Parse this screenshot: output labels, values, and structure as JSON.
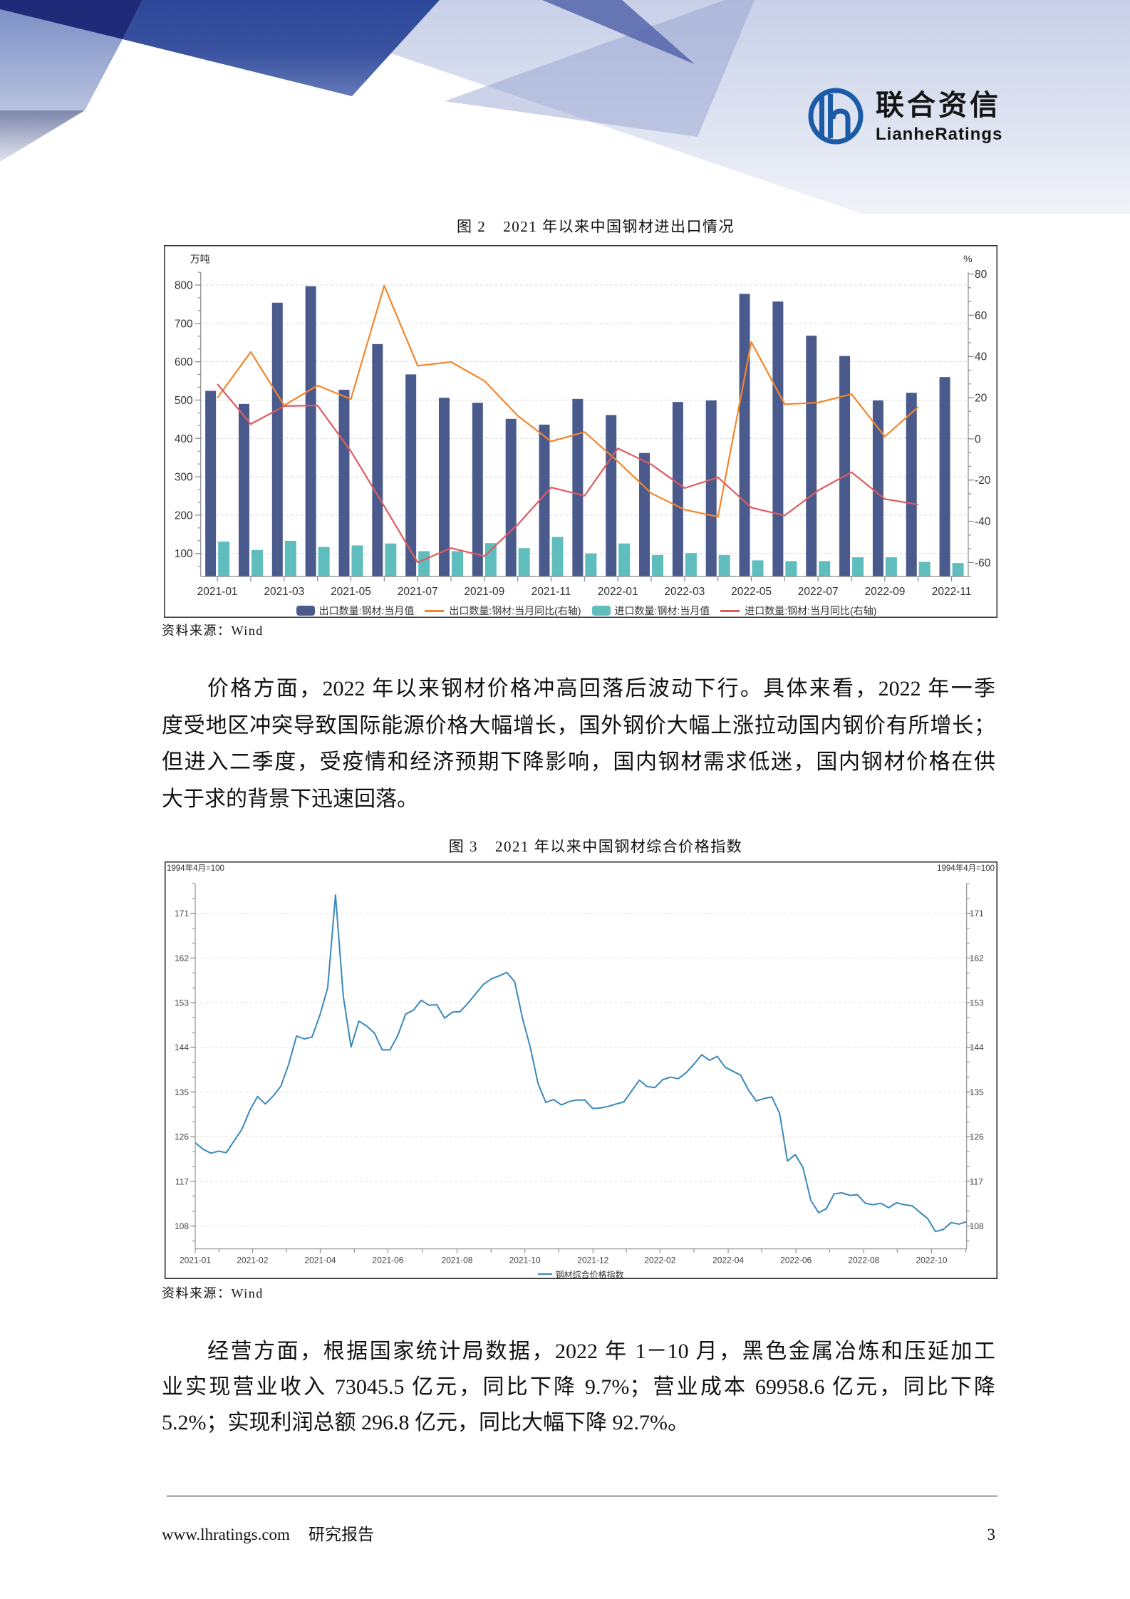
{
  "header": {
    "logo": {
      "name_cn": "联合资信",
      "name_en": "LianheRatings",
      "icon": "lh-logo-icon"
    }
  },
  "figure2": {
    "label": "图 2",
    "title": "2021 年以来中国钢材进出口情况",
    "source": "资料来源：Wind"
  },
  "paragraph1": {
    "lines": [
      "价格方面，2022 年以来钢材价格冲高回落后波动下行。具体来看，2022 年一季",
      "度受地区冲突导致国际能源价格大幅增长，国外钢价大幅上涨拉动国内钢价有所增长；",
      "但进入二季度，受疫情和经济预期下降影响，国内钢材需求低迷，国内钢材价格在供",
      "大于求的背景下迅速回落。"
    ]
  },
  "figure3": {
    "label": "图 3",
    "title": "2021 年以来中国钢材综合价格指数",
    "source": "资料来源：Wind"
  },
  "paragraph2": {
    "lines": [
      "经营方面，根据国家统计局数据，2022 年 1－10 月，黑色金属冶炼和压延加工",
      "业实现营业收入 73045.5 亿元，同比下降 9.7%；营业成本 69958.6 亿元，同比下降",
      "5.2%；实现利润总额 296.8 亿元，同比大幅下降 92.7%。"
    ]
  },
  "footer": {
    "website": "www.lhratings.com",
    "doc_type": "研究报告",
    "page_number": "3"
  },
  "colors": {
    "brand_blue": "#1b5aa6",
    "header_navy": "#1f2a78",
    "header_blue": "#2c4799",
    "export_bar": "#4b5a8c",
    "export_yoy_line": "#f4862a",
    "import_bar": "#5fbdbd",
    "import_yoy_line": "#e05a5f",
    "price_index_line": "#3a88bb"
  },
  "chart_data": [
    {
      "type": "bar+line",
      "title": "2021 年以来中国钢材进出口情况",
      "categories": [
        "2021-01",
        "2021-02",
        "2021-03",
        "2021-04",
        "2021-05",
        "2021-06",
        "2021-07",
        "2021-08",
        "2021-09",
        "2021-10",
        "2021-11",
        "2021-12",
        "2022-01",
        "2022-02",
        "2022-03",
        "2022-04",
        "2022-05",
        "2022-06",
        "2022-07",
        "2022-08",
        "2022-09",
        "2022-10",
        "2022-11"
      ],
      "xtick_labels": [
        "2021-01",
        "2021-03",
        "2021-05",
        "2021-07",
        "2021-09",
        "2021-11",
        "2022-01",
        "2022-03",
        "2022-05",
        "2022-07",
        "2022-09",
        "2022-11"
      ],
      "ylabel_left": "万吨",
      "ylabel_right": "%",
      "ylim_left": [
        40,
        833.5
      ],
      "ylim_right": [
        -66.8,
        80.9
      ],
      "yticks_left": [
        100,
        200,
        300,
        400,
        500,
        600,
        700,
        800
      ],
      "yticks_right": [
        -60,
        -40,
        -20,
        0,
        20,
        40,
        60,
        80
      ],
      "grid": true,
      "legend_position": "bottom",
      "series": [
        {
          "name": "出口数量:钢材:当月值",
          "type": "bar",
          "axis": "left",
          "color": "#4b5a8c",
          "values": [
            524,
            490,
            754,
            797,
            527,
            646,
            567,
            506,
            493,
            451,
            436,
            503,
            461,
            362,
            495,
            499,
            777,
            757,
            668,
            615,
            499,
            519,
            560
          ]
        },
        {
          "name": "出口数量:钢材:当月同比(右轴)",
          "type": "line",
          "axis": "right",
          "color": "#f4862a",
          "values": [
            19.9,
            42.2,
            16.2,
            25.9,
            19.3,
            74.4,
            35.5,
            37.3,
            28.2,
            11.2,
            -1.2,
            3.3,
            -11.0,
            -26.4,
            -34.4,
            -37.8,
            47.0,
            16.8,
            17.6,
            21.7,
            1.1,
            15.5,
            null
          ]
        },
        {
          "name": "进口数量:钢材:当月值",
          "type": "bar",
          "axis": "left",
          "color": "#5fbdbd",
          "values": [
            131,
            109,
            133,
            117,
            121,
            126,
            106,
            106,
            127,
            114,
            143,
            100,
            126,
            96,
            101,
            96,
            82,
            80,
            80,
            90,
            90,
            78,
            75
          ]
        },
        {
          "name": "进口数量:钢材:当月同比(右轴)",
          "type": "line",
          "axis": "right",
          "color": "#e05a5f",
          "values": [
            26.6,
            7.2,
            15.9,
            16.2,
            -6.0,
            -32.7,
            -60.0,
            -53.0,
            -56.9,
            -41.6,
            -23.6,
            -27.6,
            -4.6,
            -12.4,
            -23.9,
            -18.7,
            -33.4,
            -37.2,
            -25.1,
            -16.2,
            -29.2,
            -31.9,
            null
          ]
        }
      ]
    },
    {
      "type": "line",
      "title": "2021 年以来中国钢材综合价格指数",
      "ylabel_left": "1994年4月=100",
      "ylabel_right": "1994年4月=100",
      "ylim": [
        103.4,
        177
      ],
      "yticks": [
        108,
        117,
        126,
        135,
        144,
        153,
        162,
        171
      ],
      "ytick_minor_step": 3,
      "xticks": [
        {
          "label": "2021-01",
          "pos": 0
        },
        {
          "label": "2021-02",
          "pos": 7.35
        },
        {
          "label": "2021-04",
          "pos": 16.04
        },
        {
          "label": "2021-06",
          "pos": 24.73
        },
        {
          "label": "2021-08",
          "pos": 33.6
        },
        {
          "label": "2021-10",
          "pos": 42.3
        },
        {
          "label": "2021-12",
          "pos": 51.05
        },
        {
          "label": "2022-02",
          "pos": 59.65
        },
        {
          "label": "2022-04",
          "pos": 68.4
        },
        {
          "label": "2022-06",
          "pos": 77.1
        },
        {
          "label": "2022-08",
          "pos": 85.8
        },
        {
          "label": "2022-10",
          "pos": 94.5
        }
      ],
      "xticks_minor": [
        3.05,
        11.71,
        20.43,
        29.16,
        37.97,
        46.64,
        55.33,
        64.0,
        72.7,
        81.4,
        90.1,
        98.9
      ],
      "grid": true,
      "legend_position": "bottom",
      "series": [
        {
          "name": "钢材综合价格指数",
          "color": "#3a88bb",
          "values": [
            124.8,
            123.5,
            122.7,
            123.1,
            122.8,
            125.2,
            127.5,
            131.3,
            134.1,
            132.6,
            134.2,
            136.2,
            140.6,
            146.3,
            145.7,
            146.1,
            150.5,
            156.0,
            174.7,
            154.3,
            144.1,
            149.3,
            148.3,
            146.9,
            143.5,
            143.5,
            146.4,
            150.7,
            151.5,
            153.5,
            152.5,
            152.6,
            149.9,
            151.1,
            151.2,
            152.9,
            154.8,
            156.7,
            157.8,
            158.4,
            159.1,
            157.2,
            149.9,
            144.0,
            136.7,
            132.9,
            133.5,
            132.4,
            133.1,
            133.4,
            133.4,
            131.7,
            131.8,
            132.1,
            132.6,
            133.0,
            135.2,
            137.4,
            136.1,
            135.9,
            137.5,
            138.0,
            137.7,
            138.9,
            140.6,
            142.5,
            141.4,
            142.2,
            140.0,
            139.2,
            138.4,
            135.4,
            133.2,
            133.7,
            134.0,
            130.7,
            121.1,
            122.4,
            119.8,
            113.2,
            110.7,
            111.5,
            114.5,
            114.7,
            114.2,
            114.3,
            112.6,
            112.3,
            112.6,
            111.7,
            112.7,
            112.3,
            112.1,
            110.8,
            109.5,
            106.9,
            107.3,
            108.7,
            108.4,
            108.9
          ]
        }
      ]
    }
  ]
}
